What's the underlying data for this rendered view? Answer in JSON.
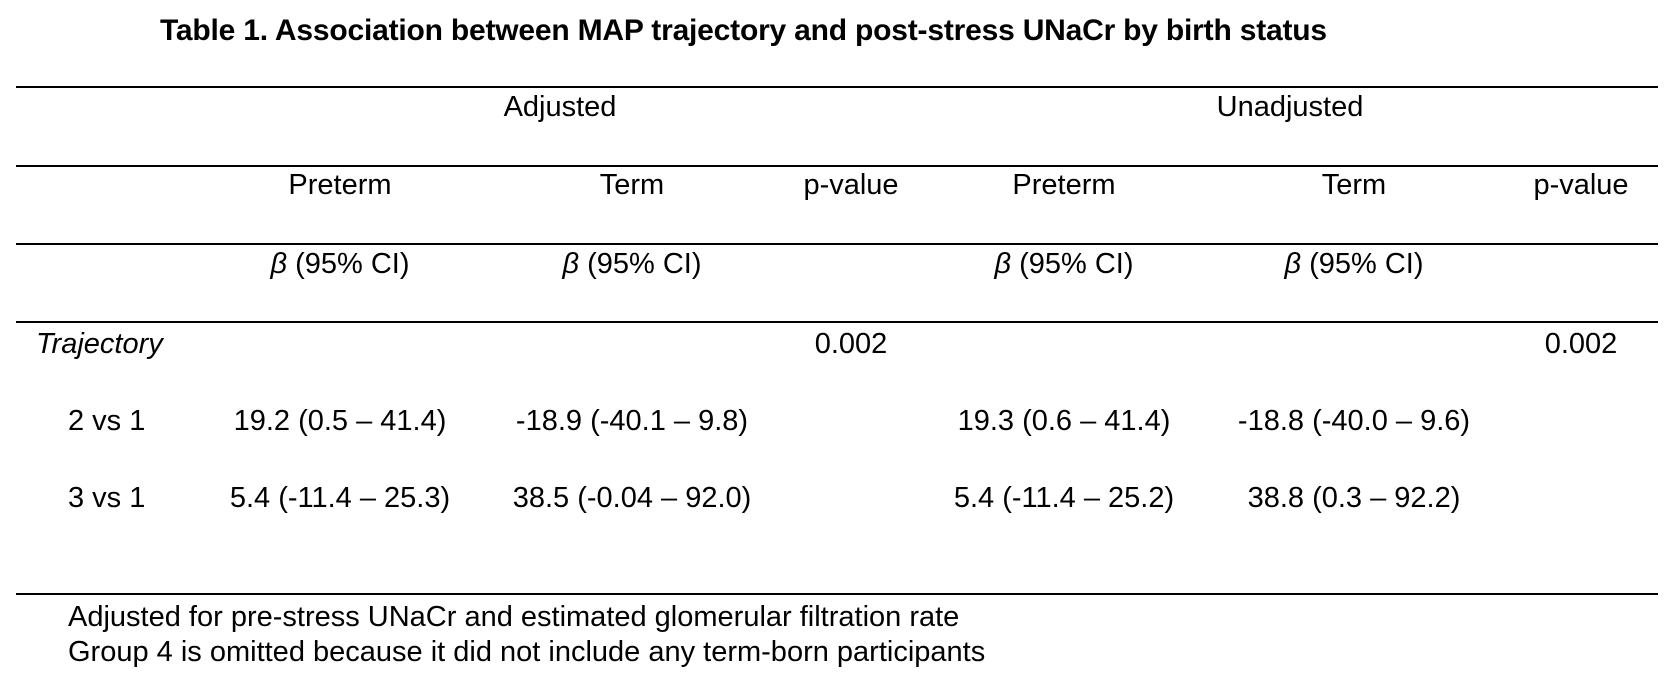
{
  "table": {
    "title": "Table 1. Association between MAP trajectory and post-stress UNaCr by birth status",
    "groups": {
      "adjusted": "Adjusted",
      "unadjusted": "Unadjusted"
    },
    "column_headers": {
      "adj_preterm": "Preterm",
      "adj_term": "Term",
      "adj_pvalue": "p-value",
      "unadj_preterm": "Preterm",
      "unadj_term": "Term",
      "unadj_pvalue": "p-value"
    },
    "stat_label": {
      "beta": "β",
      "ci": " (95% CI)"
    },
    "rows": [
      {
        "label": "Trajectory",
        "adj_preterm": "",
        "adj_term": "",
        "adj_pvalue": "0.002",
        "unadj_preterm": "",
        "unadj_term": "",
        "unadj_pvalue": "0.002"
      },
      {
        "label": "2 vs 1",
        "adj_preterm": "19.2 (0.5 – 41.4)",
        "adj_term": "-18.9 (-40.1 – 9.8)",
        "adj_pvalue": "",
        "unadj_preterm": "19.3 (0.6 – 41.4)",
        "unadj_term": "-18.8 (-40.0 – 9.6)",
        "unadj_pvalue": ""
      },
      {
        "label": "3 vs 1",
        "adj_preterm": "5.4 (-11.4 – 25.3)",
        "adj_term": "38.5 (-0.04 – 92.0)",
        "adj_pvalue": "",
        "unadj_preterm": "5.4 (-11.4 – 25.2)",
        "unadj_term": "38.8 (0.3 – 92.2)",
        "unadj_pvalue": ""
      }
    ],
    "footnotes": [
      "Adjusted for pre-stress UNaCr and estimated glomerular filtration rate",
      "Group 4 is omitted because it did not include any term-born participants"
    ]
  }
}
